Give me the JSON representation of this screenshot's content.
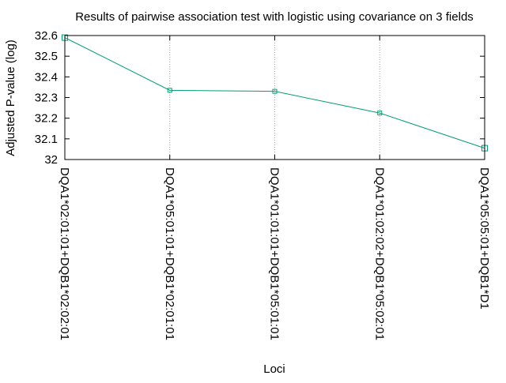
{
  "chart_data": {
    "type": "line",
    "title": "Results of pairwise association test with logistic using covariance on 3 fields",
    "xlabel": "Loci",
    "ylabel": "Adjusted P-value (log)",
    "categories": [
      "DQA1*02:01:01+DQB1*02:02:01",
      "DQA1*05:01:01+DQB1*02:01:01",
      "DQA1*01:01:01+DQB1*05:01:01",
      "DQA1*01:02:02+DQB1*05:02:01",
      "DQA1*05:05:01+DQB1*D1"
    ],
    "series": [
      {
        "values": [
          32.59,
          32.335,
          32.33,
          32.225,
          32.055
        ],
        "color": "#009e73"
      }
    ],
    "ylim": [
      32,
      32.6
    ],
    "yticks": [
      "32",
      "32.1",
      "32.2",
      "32.3",
      "32.4",
      "32.5",
      "32.6"
    ],
    "grid": "vertical-dotted",
    "marker": "square-open"
  }
}
